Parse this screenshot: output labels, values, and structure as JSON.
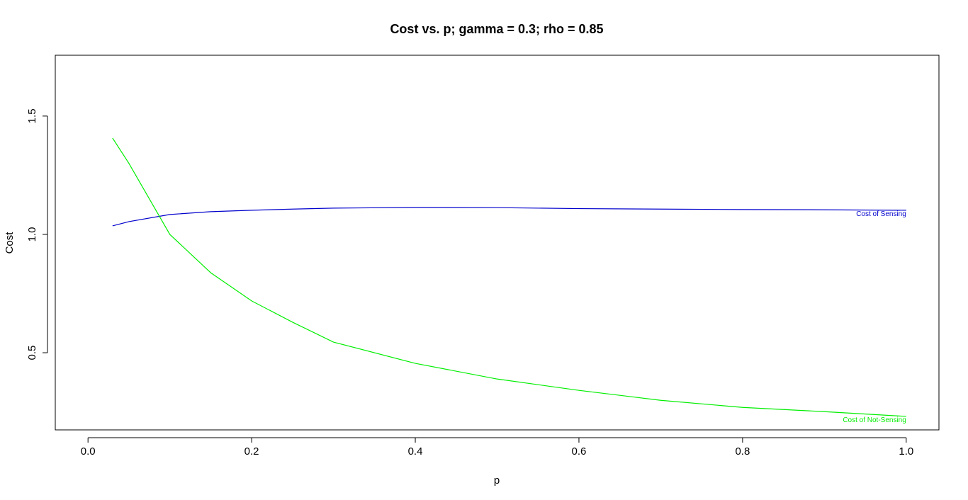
{
  "chart_data": {
    "type": "line",
    "title": "Cost vs. p; gamma = 0.3; rho = 0.85",
    "x_label": "p",
    "y_label": "Cost",
    "x": [
      0.03,
      0.05,
      0.1,
      0.15,
      0.2,
      0.25,
      0.3,
      0.4,
      0.5,
      0.6,
      0.7,
      0.8,
      0.9,
      1.0
    ],
    "series": [
      {
        "name": "Cost of Sensing",
        "color": "#0000cd",
        "values": [
          1.036,
          1.054,
          1.084,
          1.096,
          1.102,
          1.107,
          1.111,
          1.114,
          1.113,
          1.109,
          1.107,
          1.105,
          1.104,
          1.102
        ]
      },
      {
        "name": "Cost of Not-Sensing",
        "color": "#00ee00",
        "values": [
          1.407,
          1.3,
          1.0,
          0.838,
          0.719,
          0.629,
          0.545,
          0.455,
          0.389,
          0.341,
          0.299,
          0.269,
          0.251,
          0.231
        ]
      }
    ],
    "xlim": [
      -0.04,
      1.04
    ],
    "xticks": [
      {
        "value": 0,
        "label": "0.0"
      },
      0.2,
      0.4,
      0.6,
      0.8,
      {
        "value": 1,
        "label": "1.0"
      }
    ],
    "ylim": [
      0.174,
      1.757
    ],
    "yticks": [
      0.5,
      {
        "value": 1,
        "label": "1.0"
      },
      1.5
    ]
  }
}
